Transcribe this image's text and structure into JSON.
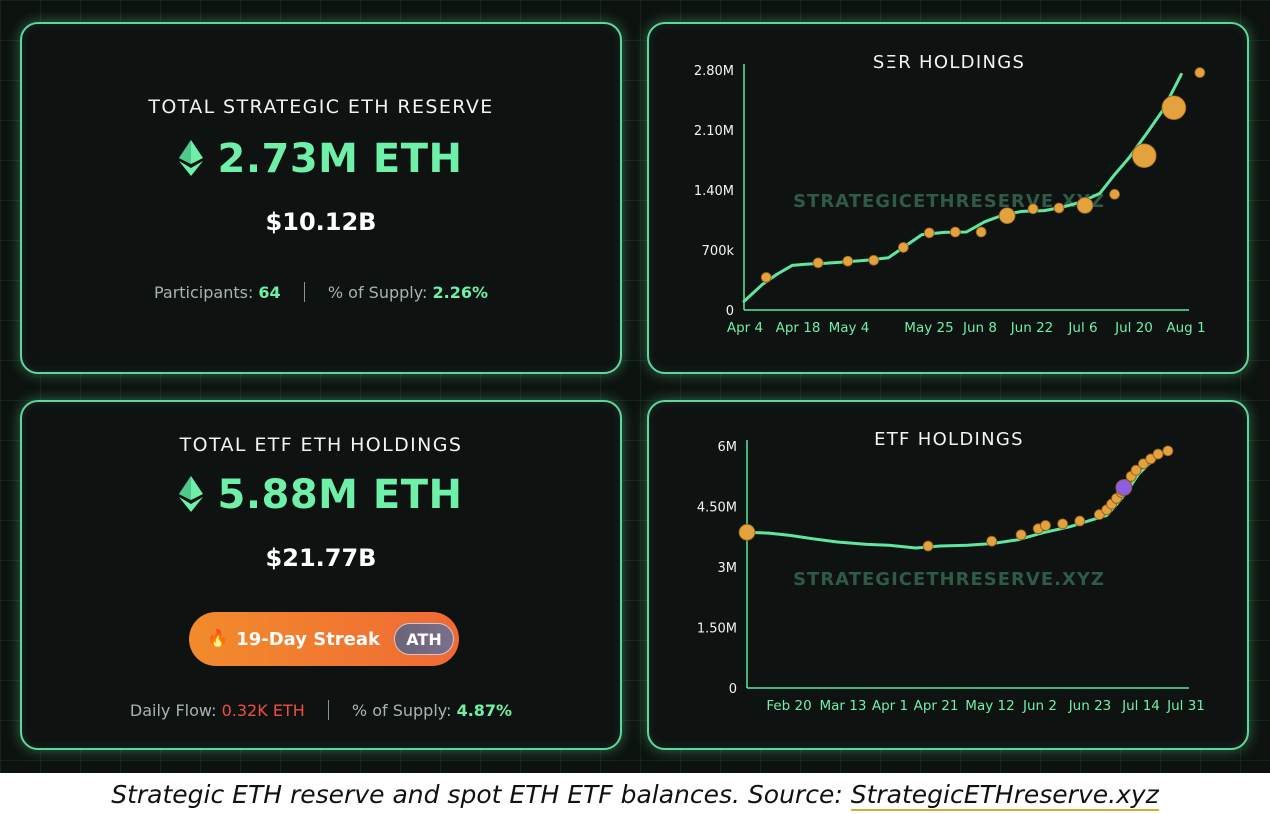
{
  "ser_card": {
    "title": "TOTAL STRATEGIC ETH RESERVE",
    "amount": "2.73M ETH",
    "usd": "$10.12B",
    "participants_label": "Participants:",
    "participants_value": "64",
    "supply_label": "% of Supply:",
    "supply_value": "2.26%"
  },
  "etf_card": {
    "title": "TOTAL ETF ETH HOLDINGS",
    "amount": "5.88M ETH",
    "usd": "$21.77B",
    "streak_label": "19-Day Streak",
    "streak_icon": "fire-icon",
    "ath_label": "ATH",
    "flow_label": "Daily Flow:",
    "flow_value": "0.32K ETH",
    "supply_label": "% of Supply:",
    "supply_value": "4.87%"
  },
  "colors": {
    "accent_green": "#6ff0a8",
    "line_green": "#5fe6a0",
    "marker_orange": "#e3a23c",
    "marker_purple": "#8e5ee0",
    "flow_red": "#ef4e3d",
    "streak_orange": "#f28b2c"
  },
  "chart_data": [
    {
      "type": "line",
      "title": "SΞR HOLDINGS",
      "watermark": "STRATEGICETHRESERVE.XYZ",
      "xlabel": "",
      "ylabel": "",
      "x_ticks": [
        "Apr 4",
        "Apr 18",
        "May 4",
        "May 25",
        "Jun 8",
        "Jun 22",
        "Jul 6",
        "Jul 20",
        "Aug 1"
      ],
      "y_ticks": [
        "0",
        "700k",
        "1.40M",
        "2.10M",
        "2.80M"
      ],
      "ylim": [
        0,
        2800000
      ],
      "xlim": [
        "2025-04-04",
        "2025-08-01"
      ],
      "line": [
        [
          "2025-04-04",
          100000
        ],
        [
          "2025-04-09",
          300000
        ],
        [
          "2025-04-13",
          420000
        ],
        [
          "2025-04-17",
          520000
        ],
        [
          "2025-04-21",
          535000
        ],
        [
          "2025-04-26",
          545000
        ],
        [
          "2025-05-01",
          560000
        ],
        [
          "2025-05-07",
          580000
        ],
        [
          "2025-05-13",
          610000
        ],
        [
          "2025-05-17",
          730000
        ],
        [
          "2025-05-22",
          880000
        ],
        [
          "2025-05-28",
          905000
        ],
        [
          "2025-06-03",
          910000
        ],
        [
          "2025-06-08",
          1030000
        ],
        [
          "2025-06-13",
          1110000
        ],
        [
          "2025-06-18",
          1150000
        ],
        [
          "2025-06-24",
          1160000
        ],
        [
          "2025-06-29",
          1200000
        ],
        [
          "2025-07-04",
          1260000
        ],
        [
          "2025-07-09",
          1360000
        ],
        [
          "2025-07-13",
          1580000
        ],
        [
          "2025-07-17",
          1780000
        ],
        [
          "2025-07-22",
          2080000
        ],
        [
          "2025-07-26",
          2330000
        ],
        [
          "2025-07-31",
          2750000
        ]
      ],
      "markers": [
        {
          "x": "2025-04-10",
          "y": 380000,
          "size": "small"
        },
        {
          "x": "2025-04-24",
          "y": 550000,
          "size": "small"
        },
        {
          "x": "2025-05-02",
          "y": 570000,
          "size": "small"
        },
        {
          "x": "2025-05-09",
          "y": 580000,
          "size": "small"
        },
        {
          "x": "2025-05-17",
          "y": 730000,
          "size": "small"
        },
        {
          "x": "2025-05-24",
          "y": 900000,
          "size": "small"
        },
        {
          "x": "2025-05-31",
          "y": 910000,
          "size": "small"
        },
        {
          "x": "2025-06-07",
          "y": 910000,
          "size": "small"
        },
        {
          "x": "2025-06-14",
          "y": 1100000,
          "size": "medium"
        },
        {
          "x": "2025-06-21",
          "y": 1180000,
          "size": "small"
        },
        {
          "x": "2025-06-28",
          "y": 1190000,
          "size": "small"
        },
        {
          "x": "2025-07-05",
          "y": 1220000,
          "size": "medium"
        },
        {
          "x": "2025-07-13",
          "y": 1350000,
          "size": "small"
        },
        {
          "x": "2025-07-21",
          "y": 1800000,
          "size": "large"
        },
        {
          "x": "2025-07-29",
          "y": 2360000,
          "size": "large"
        },
        {
          "x": "2025-08-05",
          "y": 2770000,
          "size": "small"
        }
      ]
    },
    {
      "type": "line",
      "title": "ETF HOLDINGS",
      "watermark": "STRATEGICETHRESERVE.XYZ",
      "xlabel": "",
      "ylabel": "",
      "x_ticks": [
        "Feb 20",
        "Mar 13",
        "Apr 1",
        "Apr 21",
        "May 12",
        "Jun 2",
        "Jun 23",
        "Jul 14",
        "Jul 31"
      ],
      "y_ticks": [
        "0",
        "1.50M",
        "3M",
        "4.50M",
        "6M"
      ],
      "ylim": [
        0,
        6000000
      ],
      "xlim": [
        "2025-02-11",
        "2025-08-09"
      ],
      "line": [
        [
          "2025-02-11",
          3860000
        ],
        [
          "2025-02-20",
          3840000
        ],
        [
          "2025-03-01",
          3780000
        ],
        [
          "2025-03-10",
          3700000
        ],
        [
          "2025-03-20",
          3620000
        ],
        [
          "2025-04-01",
          3560000
        ],
        [
          "2025-04-10",
          3540000
        ],
        [
          "2025-04-21",
          3470000
        ],
        [
          "2025-05-01",
          3520000
        ],
        [
          "2025-05-12",
          3540000
        ],
        [
          "2025-05-22",
          3580000
        ],
        [
          "2025-06-02",
          3680000
        ],
        [
          "2025-06-12",
          3850000
        ],
        [
          "2025-06-23",
          4000000
        ],
        [
          "2025-07-01",
          4150000
        ],
        [
          "2025-07-08",
          4280000
        ],
        [
          "2025-07-12",
          4550000
        ],
        [
          "2025-07-16",
          4850000
        ],
        [
          "2025-07-21",
          5300000
        ],
        [
          "2025-07-26",
          5600000
        ],
        [
          "2025-08-01",
          5880000
        ]
      ],
      "markers": [
        {
          "x": "2025-02-11",
          "y": 3860000,
          "size": "medium"
        },
        {
          "x": "2025-04-26",
          "y": 3520000,
          "size": "small"
        },
        {
          "x": "2025-05-22",
          "y": 3640000,
          "size": "small"
        },
        {
          "x": "2025-06-03",
          "y": 3800000,
          "size": "small"
        },
        {
          "x": "2025-06-10",
          "y": 3950000,
          "size": "small"
        },
        {
          "x": "2025-06-13",
          "y": 4030000,
          "size": "small"
        },
        {
          "x": "2025-06-20",
          "y": 4070000,
          "size": "small"
        },
        {
          "x": "2025-06-27",
          "y": 4140000,
          "size": "small"
        },
        {
          "x": "2025-07-05",
          "y": 4300000,
          "size": "small"
        },
        {
          "x": "2025-07-08",
          "y": 4420000,
          "size": "small"
        },
        {
          "x": "2025-07-10",
          "y": 4560000,
          "size": "small"
        },
        {
          "x": "2025-07-12",
          "y": 4700000,
          "size": "small"
        },
        {
          "x": "2025-07-14",
          "y": 4850000,
          "size": "small"
        },
        {
          "x": "2025-07-16",
          "y": 5050000,
          "size": "small"
        },
        {
          "x": "2025-07-18",
          "y": 5250000,
          "size": "small"
        },
        {
          "x": "2025-07-20",
          "y": 5400000,
          "size": "small"
        },
        {
          "x": "2025-07-23",
          "y": 5560000,
          "size": "small"
        },
        {
          "x": "2025-07-26",
          "y": 5680000,
          "size": "small"
        },
        {
          "x": "2025-07-29",
          "y": 5800000,
          "size": "small"
        },
        {
          "x": "2025-08-02",
          "y": 5880000,
          "size": "small"
        },
        {
          "x": "2025-07-15",
          "y": 4970000,
          "size": "medium",
          "color": "purple"
        }
      ]
    }
  ],
  "caption": {
    "text": "Strategic ETH reserve and spot ETH ETF balances. Source: ",
    "link": "StrategicETHreserve.xyz"
  }
}
